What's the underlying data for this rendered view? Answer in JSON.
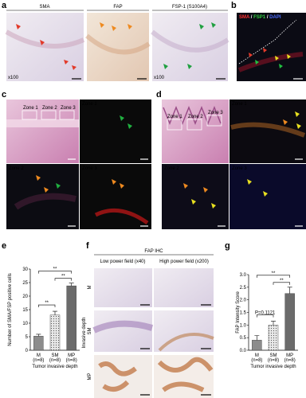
{
  "panel_a": {
    "label": "a",
    "images": [
      {
        "title": "SMA",
        "magnification": "x100"
      },
      {
        "title": "FAP"
      },
      {
        "title": "FSP-1 (S100A4)",
        "magnification": "x100"
      }
    ]
  },
  "panel_b": {
    "label": "b",
    "stains": [
      "SMA",
      "FSP1",
      "DAPI"
    ],
    "separator": "/"
  },
  "panel_c": {
    "label": "c",
    "zones": [
      "Zone 1",
      "Zone 2",
      "Zone 3"
    ]
  },
  "panel_d": {
    "label": "d",
    "zones": [
      "Zone 1",
      "Zone 2",
      "Zone 3"
    ]
  },
  "panel_f": {
    "label": "f",
    "title": "FAP IHC",
    "columns": [
      "Low power field (x40)",
      "High power field (x200)"
    ],
    "rows": [
      "M",
      "SM",
      "MP"
    ],
    "row_axis_label": "Invasive depth"
  },
  "chart_data": [
    {
      "type": "bar",
      "label": "e",
      "categories": [
        "M",
        "SM",
        "MP"
      ],
      "category_notes": [
        "(n=8)",
        "(n=8)",
        "(n=8)"
      ],
      "values": [
        5.2,
        13,
        23.8
      ],
      "errors": [
        0.7,
        1.4,
        1.0
      ],
      "colors": [
        "#8c8c8c",
        "#cfcfcf",
        "#6b6b6b"
      ],
      "ylim": [
        0,
        30
      ],
      "yticks": [
        0,
        5,
        10,
        15,
        20,
        25,
        30
      ],
      "y_label": "Number of SMA/FSP positive cells",
      "x_label": "Tumor invasive depth",
      "annotations": [
        "**",
        "**",
        "**"
      ]
    },
    {
      "type": "bar",
      "label": "g",
      "categories": [
        "M",
        "SM",
        "MP"
      ],
      "category_notes": [
        "(n=8)",
        "(n=8)",
        "(n=8)"
      ],
      "values": [
        0.4,
        1.0,
        2.25
      ],
      "errors": [
        0.18,
        0.15,
        0.25
      ],
      "colors": [
        "#8c8c8c",
        "#cfcfcf",
        "#6b6b6b"
      ],
      "ylim": [
        0,
        3
      ],
      "yticks": [
        {
          "value": 0,
          "label": "0.0"
        },
        0.5,
        {
          "value": 1,
          "label": "1.0"
        },
        1.5,
        {
          "value": 2,
          "label": "2.0"
        },
        2.5,
        {
          "value": 3,
          "label": "3.0"
        }
      ],
      "y_label": "FAP Intensity Score",
      "x_label": "Tumor invasive depth",
      "annotations": [
        "P=0.1121",
        "**",
        "**"
      ]
    }
  ]
}
